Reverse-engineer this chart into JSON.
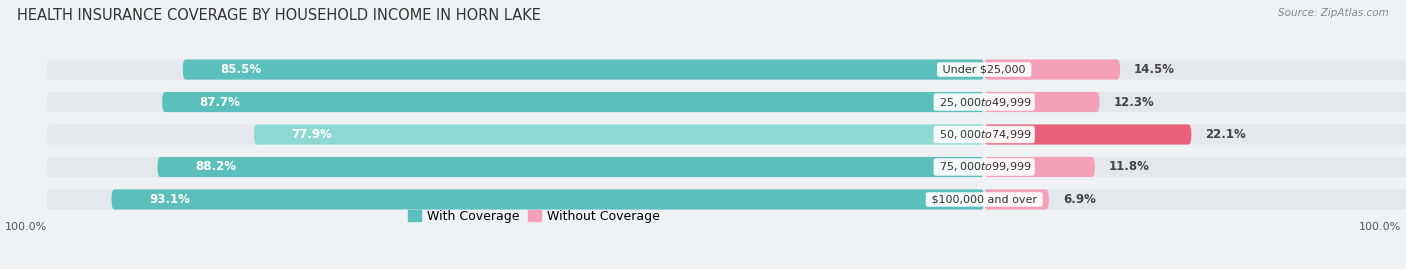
{
  "title": "HEALTH INSURANCE COVERAGE BY HOUSEHOLD INCOME IN HORN LAKE",
  "source": "Source: ZipAtlas.com",
  "categories": [
    "Under $25,000",
    "$25,000 to $49,999",
    "$50,000 to $74,999",
    "$75,000 to $99,999",
    "$100,000 and over"
  ],
  "with_coverage": [
    85.5,
    87.7,
    77.9,
    88.2,
    93.1
  ],
  "without_coverage": [
    14.5,
    12.3,
    22.1,
    11.8,
    6.9
  ],
  "color_with": "#5BBFBB",
  "color_with_light": "#8ED8D4",
  "color_without_dark": "#E8607A",
  "color_without_light": "#F4A0B8",
  "background_color": "#eef2f5",
  "bar_background": "#e4e8ed",
  "title_fontsize": 10.5,
  "label_fontsize": 8.5,
  "pct_fontsize": 8.5,
  "legend_fontsize": 9,
  "axis_label_fontsize": 8,
  "x_left_label": "100.0%",
  "x_right_label": "100.0%"
}
